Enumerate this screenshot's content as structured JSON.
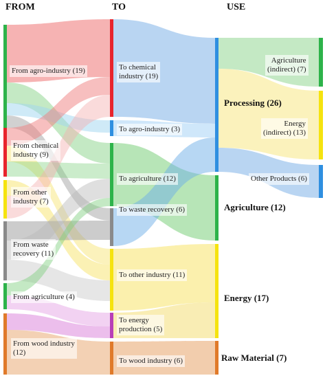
{
  "headers": {
    "from": "FROM",
    "to": "TO",
    "use": "USE"
  },
  "from_nodes": [
    {
      "id": "agro",
      "label": "From agro-industry (19)",
      "value": 19,
      "color": "#2db34a"
    },
    {
      "id": "chem",
      "label": "From chemical\nindustry (9)",
      "value": 9,
      "color": "#e8242c"
    },
    {
      "id": "other",
      "label": "From other\nindustry (7)",
      "value": 7,
      "color": "#f5e30f"
    },
    {
      "id": "waste",
      "label": "From waste\nrecovery (11)",
      "value": 11,
      "color": "#8a8a8a"
    },
    {
      "id": "agri",
      "label": "From agriculture  (4)",
      "value": 4,
      "color": "#2db34a"
    },
    {
      "id": "wood",
      "label": "From wood industry\n(12)",
      "value": 12,
      "color": "#e07a2a"
    }
  ],
  "to_nodes": [
    {
      "id": "t_chem",
      "label": "To chemical\nindustry (19)",
      "value": 19,
      "color": "#e8242c"
    },
    {
      "id": "t_agro",
      "label": "To agro-industry (3)",
      "value": 3,
      "color": "#2f8fe0"
    },
    {
      "id": "t_agri",
      "label": "To agriculture  (12)",
      "value": 12,
      "color": "#2db34a"
    },
    {
      "id": "t_waste",
      "label": "To waste recovery (6)",
      "value": 6,
      "color": "#8a8a8a"
    },
    {
      "id": "t_other",
      "label": "To other industry (11)",
      "value": 11,
      "color": "#f5e30f"
    },
    {
      "id": "t_energy",
      "label": "To energy\nproduction (5)",
      "value": 5,
      "color": "#b83fb8"
    },
    {
      "id": "t_wood",
      "label": "To wood industry (6)",
      "value": 6,
      "color": "#e07a2a"
    }
  ],
  "use_nodes": [
    {
      "id": "processing",
      "label": "Processing (26)",
      "value": 26,
      "color": "#2f8fe0"
    },
    {
      "id": "agriculture",
      "label": "Agriculture (12)",
      "value": 12,
      "color": "#2db34a"
    },
    {
      "id": "energy",
      "label": "Energy (17)",
      "value": 17,
      "color": "#f5e30f"
    },
    {
      "id": "raw",
      "label": "Raw Material (7)",
      "value": 7,
      "color": "#e07a2a"
    }
  ],
  "sub_nodes": [
    {
      "id": "agri_ind",
      "label": "Agriculture\n(indirect) (7)",
      "value": 7,
      "color": "#2db34a"
    },
    {
      "id": "energy_ind",
      "label": "Energy\n(indirect) (13)",
      "value": 13,
      "color": "#f5e30f"
    },
    {
      "id": "other_prod",
      "label": "Other Products (6)",
      "value": 6,
      "color": "#2f8fe0"
    }
  ]
}
